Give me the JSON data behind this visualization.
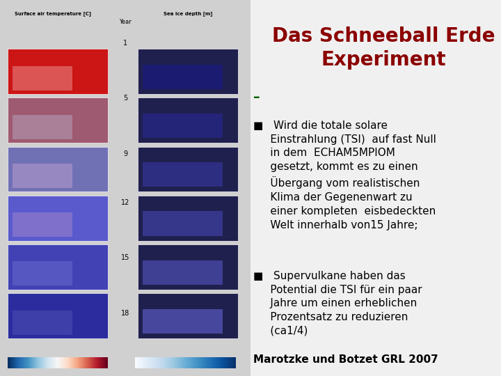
{
  "title": "Das Schneeball Erde\nExperiment",
  "title_color": "#8B0000",
  "title_fontsize": 20,
  "background_color": "#f0f0f0",
  "bullet1_header": "■   Wird die totale solare\nEinstrahlung (TSI)  auf fast Null\nin dem  ECHAM5MPIOM\ngesetzt, kommt es zu einen\nÜbergang vom realistischen\nKlima der Gegenenwart zu\neiner kompleten eisbedeckten\nWelt innerhalb von15 Jahre;",
  "bullet2_header": "■   Supervulkane haben das\nPotential die TSI für ein paar\nJahre um einen erheblichen\nProzentsatz zu reduzieren\n(ca1/4)",
  "footer": "Marotzke und Botzet GRL 2007",
  "left_image_label1": "Surface air temperature [C]",
  "left_image_label2": "Sea ice depth [m]",
  "year_label": "Year",
  "years": [
    "1",
    "5",
    "9",
    "12",
    "15",
    "18"
  ],
  "text_fontsize": 11,
  "footer_fontsize": 11,
  "dash_color": "#006400",
  "text_color": "#000000"
}
